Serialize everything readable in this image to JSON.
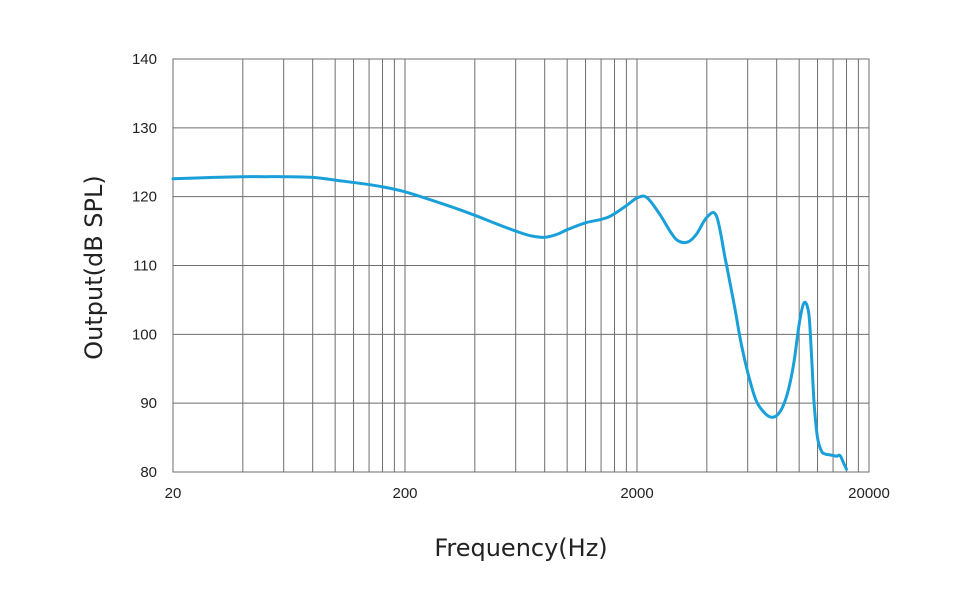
{
  "chart_data": {
    "type": "line",
    "xlabel": "Frequency(Hz)",
    "ylabel": "Output(dB SPL)",
    "x_scale": "log",
    "xlim": [
      20,
      20000
    ],
    "ylim": [
      80,
      140
    ],
    "grid": true,
    "x_ticks": [
      20,
      200,
      2000,
      20000
    ],
    "x_tick_labels": [
      "20",
      "200",
      "2000",
      "20000"
    ],
    "y_ticks": [
      80,
      90,
      100,
      110,
      120,
      130,
      140
    ],
    "y_tick_labels": [
      "80",
      "90",
      "100",
      "110",
      "120",
      "130",
      "140"
    ],
    "colors": {
      "curve": "#1aa0d8",
      "grid": "#6e6e6e",
      "text": "#222222"
    },
    "series": [
      {
        "x": [
          20,
          30,
          40,
          50,
          60,
          80,
          100,
          150,
          200,
          300,
          400,
          500,
          600,
          700,
          800,
          900,
          1000,
          1200,
          1500,
          1800,
          2000,
          2200,
          2500,
          2800,
          3000,
          3300,
          3600,
          4000,
          4400,
          4800,
          5000,
          5300,
          5600,
          6000,
          6500,
          7000,
          7500,
          8000,
          8500,
          9000,
          9500,
          10000,
          10500,
          11000,
          11300,
          11600,
          12000,
          12500,
          13000,
          13500,
          14000,
          14500,
          15000,
          15500,
          16000
        ],
        "values": [
          122.6,
          122.8,
          122.9,
          122.9,
          122.9,
          122.8,
          122.4,
          121.6,
          120.7,
          118.8,
          117.3,
          116.0,
          115.0,
          114.3,
          114.1,
          114.5,
          115.2,
          116.2,
          117.0,
          118.7,
          119.8,
          119.9,
          117.5,
          114.8,
          113.6,
          113.4,
          114.5,
          117.0,
          117.2,
          111.0,
          108.0,
          103.5,
          99.0,
          94.5,
          90.5,
          88.8,
          88.0,
          88.2,
          89.5,
          92.0,
          96.0,
          101.5,
          104.6,
          103.0,
          97.0,
          90.0,
          85.0,
          83.0,
          82.6,
          82.5,
          82.4,
          82.3,
          82.4,
          81.4,
          80.4
        ]
      }
    ]
  }
}
